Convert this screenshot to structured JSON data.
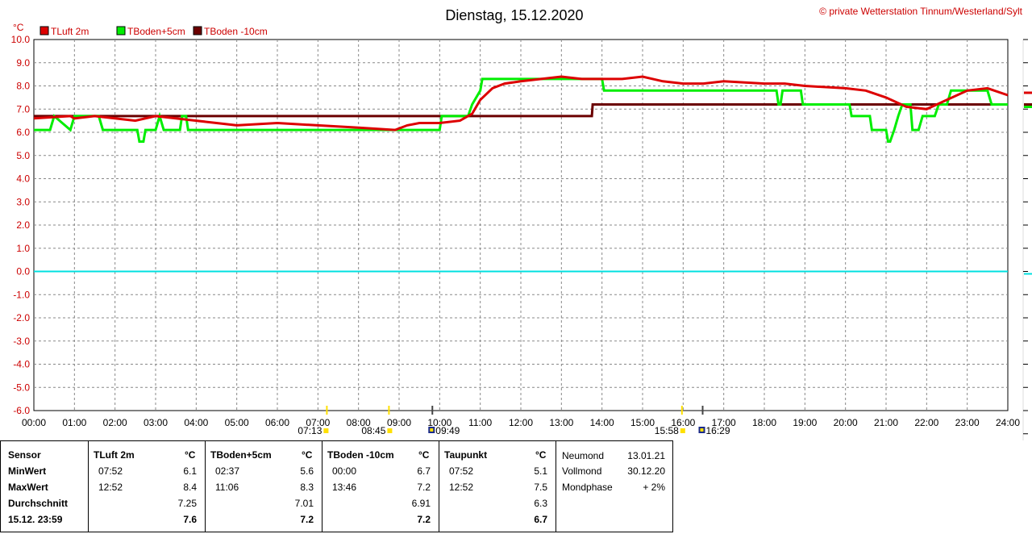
{
  "chart_data": {
    "type": "line",
    "title": "Dienstag, 15.12.2020",
    "copyright": "© private Wetterstation Tinnum/Westerland/Sylt",
    "ylabel": "°C",
    "xlabel": "",
    "ylim": [
      -6.0,
      10.0
    ],
    "xlim": [
      0,
      24
    ],
    "grid": true,
    "legend_position": "top-left",
    "y_ticks": [
      "10.0",
      "9.0",
      "8.0",
      "7.0",
      "6.0",
      "5.0",
      "4.0",
      "3.0",
      "2.0",
      "1.0",
      "0.0",
      "-1.0",
      "-2.0",
      "-3.0",
      "-4.0",
      "-5.0",
      "-6.0"
    ],
    "x_ticks": [
      "00:00",
      "01:00",
      "02:00",
      "03:00",
      "04:00",
      "05:00",
      "06:00",
      "07:00",
      "08:00",
      "09:00",
      "10:00",
      "11:00",
      "12:00",
      "13:00",
      "14:00",
      "15:00",
      "16:00",
      "17:00",
      "18:00",
      "19:00",
      "20:00",
      "21:00",
      "22:00",
      "23:00",
      "24:00"
    ],
    "series": [
      {
        "name": "TLuft 2m",
        "color": "#dd0000",
        "x": [
          0,
          0.9,
          1.0,
          1.5,
          2.0,
          2.5,
          3.0,
          3.5,
          4.0,
          4.5,
          5.0,
          6.0,
          7.0,
          8.0,
          8.9,
          9.2,
          9.5,
          10.0,
          10.5,
          10.8,
          11.0,
          11.3,
          11.6,
          12.0,
          12.5,
          13.0,
          13.5,
          14.0,
          14.5,
          15.0,
          15.5,
          16.0,
          16.5,
          17.0,
          18.0,
          18.5,
          19.0,
          20.0,
          20.5,
          21.0,
          21.5,
          22.0,
          22.5,
          23.0,
          23.5,
          24.0
        ],
        "values": [
          6.6,
          6.7,
          6.6,
          6.7,
          6.6,
          6.5,
          6.7,
          6.6,
          6.5,
          6.4,
          6.3,
          6.4,
          6.3,
          6.2,
          6.1,
          6.3,
          6.4,
          6.4,
          6.5,
          6.8,
          7.4,
          7.9,
          8.1,
          8.2,
          8.3,
          8.4,
          8.3,
          8.3,
          8.3,
          8.4,
          8.2,
          8.1,
          8.1,
          8.2,
          8.1,
          8.1,
          8.0,
          7.9,
          7.8,
          7.5,
          7.1,
          7.0,
          7.4,
          7.8,
          7.9,
          7.6
        ]
      },
      {
        "name": "TBoden+5cm",
        "color": "#00ee00",
        "x": [
          0,
          0.4,
          0.5,
          0.9,
          1.0,
          1.6,
          1.7,
          2.55,
          2.6,
          2.7,
          2.75,
          2.8,
          3.0,
          3.1,
          3.2,
          3.6,
          3.65,
          3.75,
          3.8,
          10.0,
          10.05,
          10.7,
          10.8,
          11.0,
          11.05,
          14.0,
          14.05,
          18.3,
          18.35,
          18.4,
          18.45,
          18.9,
          18.95,
          20.1,
          20.15,
          20.6,
          20.65,
          21.0,
          21.05,
          21.1,
          21.2,
          21.3,
          21.4,
          21.6,
          21.65,
          21.8,
          21.9,
          22.2,
          22.3,
          22.5,
          22.6,
          22.8,
          22.9,
          23.5,
          23.6,
          24.0
        ],
        "values": [
          6.1,
          6.1,
          6.7,
          6.1,
          6.7,
          6.7,
          6.1,
          6.1,
          5.6,
          5.6,
          6.1,
          6.1,
          6.1,
          6.7,
          6.1,
          6.1,
          6.7,
          6.7,
          6.1,
          6.1,
          6.7,
          6.7,
          7.2,
          7.8,
          8.3,
          8.3,
          7.8,
          7.8,
          7.2,
          7.2,
          7.8,
          7.8,
          7.2,
          7.2,
          6.7,
          6.7,
          6.1,
          6.1,
          5.6,
          5.6,
          6.1,
          6.7,
          7.2,
          7.2,
          6.1,
          6.1,
          6.7,
          6.7,
          7.2,
          7.2,
          7.8,
          7.8,
          7.8,
          7.8,
          7.2,
          7.2
        ]
      },
      {
        "name": "TBoden -10cm",
        "color": "#6b0000",
        "x": [
          0,
          13.75,
          13.77,
          24.0
        ],
        "values": [
          6.7,
          6.7,
          7.2,
          7.2
        ]
      }
    ],
    "sun_markers": [
      {
        "time": "07:13",
        "hour": 7.22
      },
      {
        "time": "08:45",
        "hour": 8.75
      },
      {
        "time": "15:58",
        "hour": 15.97
      }
    ],
    "moon_markers": [
      {
        "time": "09:49",
        "hour": 9.82
      },
      {
        "time": "16:29",
        "hour": 16.48
      }
    ]
  },
  "table": {
    "header": {
      "sensor": "Sensor",
      "tluft": "TLuft 2m",
      "tb5": "TBoden+5cm",
      "tb10": "TBoden -10cm",
      "taup": "Taupunkt",
      "unit": "°C"
    },
    "rows": [
      {
        "label": "MinWert",
        "tluft_t": "07:52",
        "tluft_v": "6.1",
        "tb5_t": "02:37",
        "tb5_v": "5.6",
        "tb10_t": "00:00",
        "tb10_v": "6.7",
        "taup_t": "07:52",
        "taup_v": "5.1"
      },
      {
        "label": "MaxWert",
        "tluft_t": "12:52",
        "tluft_v": "8.4",
        "tb5_t": "11:06",
        "tb5_v": "8.3",
        "tb10_t": "13:46",
        "tb10_v": "7.2",
        "taup_t": "12:52",
        "taup_v": "7.5"
      },
      {
        "label": "Durchschnitt",
        "tluft_t": "",
        "tluft_v": "7.25",
        "tb5_t": "",
        "tb5_v": "7.01",
        "tb10_t": "",
        "tb10_v": "6.91",
        "taup_t": "",
        "taup_v": "6.3"
      },
      {
        "label": "15.12. 23:59",
        "tluft_t": "",
        "tluft_v": "7.6",
        "tb5_t": "",
        "tb5_v": "7.2",
        "tb10_t": "",
        "tb10_v": "7.2",
        "taup_t": "",
        "taup_v": "6.7"
      }
    ],
    "moon": [
      {
        "label": "Neumond",
        "value": "13.01.21"
      },
      {
        "label": "Vollmond",
        "value": "30.12.20"
      },
      {
        "label": "Mondphase",
        "value": "+ 2%"
      }
    ]
  }
}
